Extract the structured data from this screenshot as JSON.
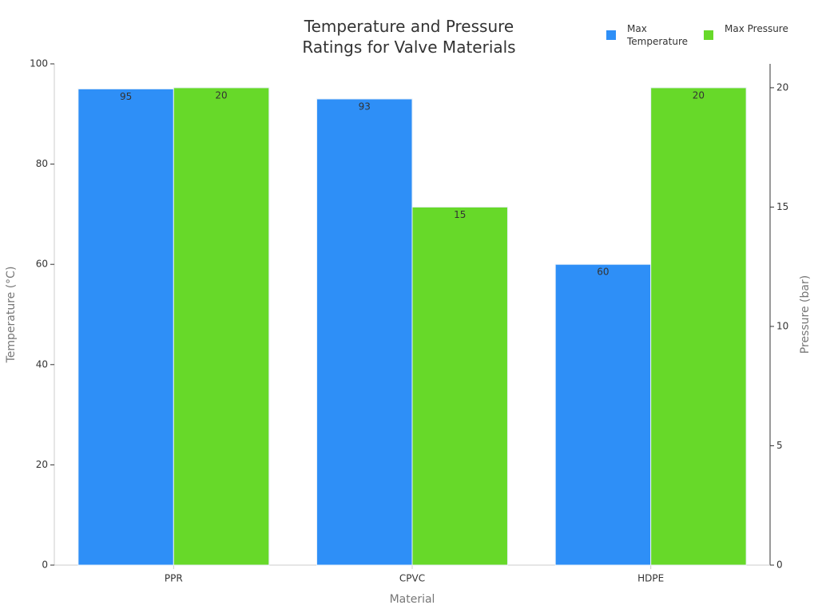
{
  "chart_data": {
    "type": "bar",
    "title": "Temperature and Pressure Ratings for Valve Materials",
    "x_label": "Material",
    "y_label": "Temperature (°C)",
    "y2_label": "Pressure (bar)",
    "categories": [
      "PPR",
      "CPVC",
      "HDPE"
    ],
    "series": [
      {
        "name": "Max Temperature",
        "color": "#2e8ff7",
        "values": [
          95,
          93,
          60
        ]
      },
      {
        "name": "Max Pressure",
        "color": "#67d929",
        "values": [
          20,
          15,
          20
        ],
        "axis": "y2"
      }
    ],
    "ylim": [
      0,
      100
    ],
    "yticks": [
      0,
      20,
      40,
      60,
      80,
      100
    ],
    "y2lim": [
      0,
      21
    ],
    "y2ticks": [
      0,
      5,
      10,
      15,
      20
    ],
    "grid": false,
    "legend": "top-right"
  }
}
